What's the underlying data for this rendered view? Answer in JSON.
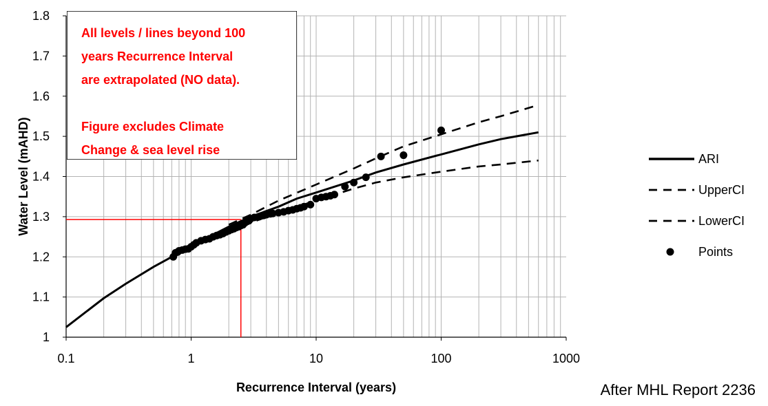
{
  "chart_data": {
    "type": "line",
    "xlabel": "Recurrence Interval (years)",
    "ylabel": "Water Level (mAHD)",
    "x_scale": "log",
    "xlim": [
      0.1,
      1000
    ],
    "ylim": [
      1.0,
      1.8
    ],
    "x_ticks": [
      0.1,
      1,
      10,
      100,
      1000
    ],
    "x_tick_labels": [
      "0.1",
      "1",
      "10",
      "100",
      "1000"
    ],
    "y_ticks": [
      1.0,
      1.1,
      1.2,
      1.3,
      1.4,
      1.5,
      1.6,
      1.7,
      1.8
    ],
    "y_tick_labels": [
      "1",
      "1.1",
      "1.2",
      "1.3",
      "1.4",
      "1.5",
      "1.6",
      "1.7",
      "1.8"
    ],
    "grid": true,
    "legend_position": "right",
    "series": [
      {
        "name": "ARI",
        "style": "solid",
        "color": "#000000",
        "x": [
          0.1,
          0.2,
          0.3,
          0.5,
          0.7,
          1,
          1.5,
          2,
          3,
          5,
          7,
          10,
          20,
          30,
          50,
          100,
          200,
          300,
          600
        ],
        "y": [
          1.025,
          1.097,
          1.133,
          1.175,
          1.2,
          1.225,
          1.255,
          1.275,
          1.3,
          1.325,
          1.345,
          1.36,
          1.39,
          1.41,
          1.43,
          1.455,
          1.48,
          1.493,
          1.51
        ]
      },
      {
        "name": "UpperCI",
        "style": "dashed",
        "color": "#000000",
        "x": [
          2,
          3,
          5,
          10,
          20,
          30,
          50,
          100,
          200,
          300,
          600
        ],
        "y": [
          1.28,
          1.305,
          1.34,
          1.38,
          1.42,
          1.445,
          1.475,
          1.505,
          1.535,
          1.55,
          1.578
        ]
      },
      {
        "name": "LowerCI",
        "style": "dashed",
        "color": "#000000",
        "x": [
          2,
          3,
          5,
          10,
          20,
          30,
          50,
          100,
          200,
          300,
          600
        ],
        "y": [
          1.26,
          1.285,
          1.31,
          1.34,
          1.37,
          1.385,
          1.398,
          1.412,
          1.425,
          1.43,
          1.44
        ]
      },
      {
        "name": "Points",
        "style": "markers",
        "color": "#000000",
        "x": [
          0.72,
          0.75,
          0.78,
          0.8,
          0.85,
          0.9,
          0.95,
          1.0,
          1.05,
          1.1,
          1.2,
          1.3,
          1.4,
          1.5,
          1.6,
          1.7,
          1.8,
          1.9,
          2.0,
          2.1,
          2.2,
          2.3,
          2.4,
          2.5,
          2.6,
          2.7,
          2.8,
          2.9,
          3.0,
          3.2,
          3.5,
          3.8,
          4.0,
          4.3,
          4.5,
          5.0,
          5.5,
          6.0,
          6.5,
          7.0,
          7.5,
          8.0,
          9.0,
          10,
          11,
          12,
          13,
          14,
          17,
          20,
          25,
          33,
          50,
          100
        ],
        "y": [
          1.2,
          1.21,
          1.212,
          1.215,
          1.217,
          1.219,
          1.22,
          1.225,
          1.23,
          1.235,
          1.24,
          1.243,
          1.245,
          1.25,
          1.253,
          1.255,
          1.258,
          1.262,
          1.265,
          1.268,
          1.27,
          1.273,
          1.275,
          1.278,
          1.28,
          1.285,
          1.288,
          1.29,
          1.295,
          1.298,
          1.3,
          1.303,
          1.305,
          1.307,
          1.308,
          1.31,
          1.312,
          1.315,
          1.317,
          1.32,
          1.322,
          1.325,
          1.33,
          1.345,
          1.348,
          1.35,
          1.352,
          1.355,
          1.375,
          1.385,
          1.398,
          1.45,
          1.453,
          1.515
        ]
      }
    ],
    "reference_lines": {
      "x": 2.5,
      "y": 1.293,
      "color": "#ff0000"
    },
    "annotation": {
      "lines": [
        "All levels / lines beyond 100",
        "years Recurrence Interval",
        "are extrapolated (NO data).",
        "",
        "Figure excludes Climate",
        "Change & sea level rise"
      ],
      "text_color": "#ff0000",
      "border_color": "#000000"
    },
    "credit": "After MHL Report 2236"
  }
}
